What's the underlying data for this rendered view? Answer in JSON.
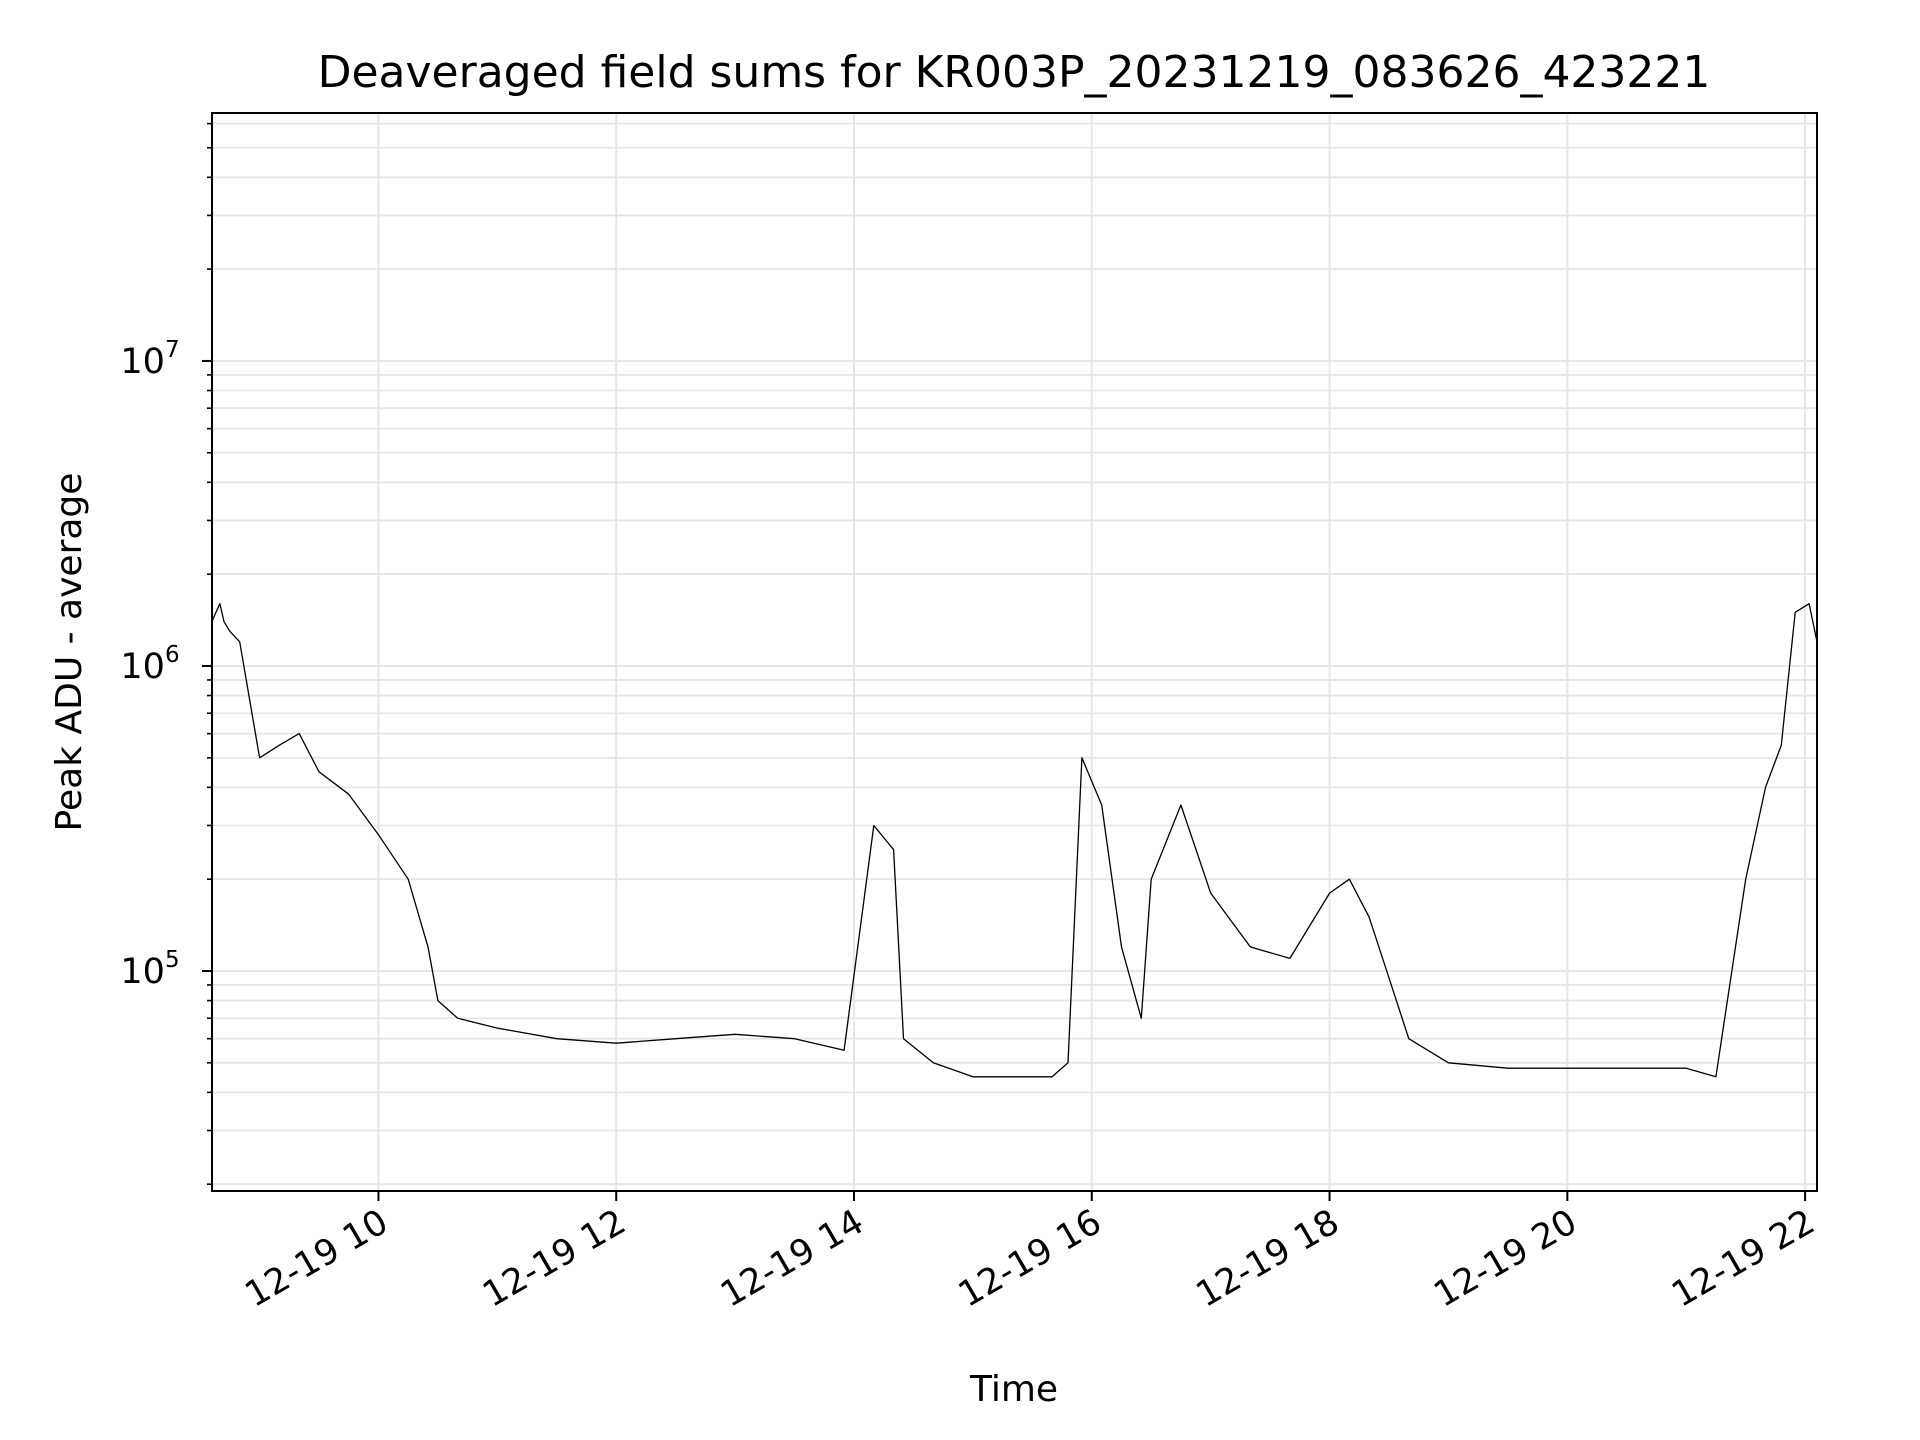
{
  "chart_data": {
    "type": "line",
    "title": "Deaveraged field sums for KR003P_20231219_083626_423221",
    "xlabel": "Time",
    "ylabel": "Peak ADU - average",
    "xlim": [
      "2023-12-19T08:36",
      "2023-12-19T22:06"
    ],
    "ylim": [
      19000,
      65000000
    ],
    "yscale": "log",
    "grid": true,
    "x_ticks": [
      {
        "value": "2023-12-19T10:00",
        "label": "12-19 10"
      },
      {
        "value": "2023-12-19T12:00",
        "label": "12-19 12"
      },
      {
        "value": "2023-12-19T14:00",
        "label": "12-19 14"
      },
      {
        "value": "2023-12-19T16:00",
        "label": "12-19 16"
      },
      {
        "value": "2023-12-19T18:00",
        "label": "12-19 18"
      },
      {
        "value": "2023-12-19T20:00",
        "label": "12-19 20"
      },
      {
        "value": "2023-12-19T22:00",
        "label": "12-19 22"
      }
    ],
    "y_ticks": [
      {
        "value": 100000,
        "base": "10",
        "exp": "5"
      },
      {
        "value": 1000000,
        "base": "10",
        "exp": "6"
      },
      {
        "value": 10000000,
        "base": "10",
        "exp": "7"
      }
    ],
    "series": [
      {
        "color": "#000000",
        "x": [
          "2023-12-19T08:36",
          "2023-12-19T08:38",
          "2023-12-19T08:40",
          "2023-12-19T08:42",
          "2023-12-19T08:45",
          "2023-12-19T08:50",
          "2023-12-19T09:00",
          "2023-12-19T09:10",
          "2023-12-19T09:20",
          "2023-12-19T09:30",
          "2023-12-19T09:45",
          "2023-12-19T10:00",
          "2023-12-19T10:15",
          "2023-12-19T10:25",
          "2023-12-19T10:30",
          "2023-12-19T10:40",
          "2023-12-19T11:00",
          "2023-12-19T11:30",
          "2023-12-19T12:00",
          "2023-12-19T12:30",
          "2023-12-19T13:00",
          "2023-12-19T13:30",
          "2023-12-19T13:55",
          "2023-12-19T14:10",
          "2023-12-19T14:20",
          "2023-12-19T14:25",
          "2023-12-19T14:40",
          "2023-12-19T15:00",
          "2023-12-19T15:20",
          "2023-12-19T15:40",
          "2023-12-19T15:48",
          "2023-12-19T15:55",
          "2023-12-19T16:05",
          "2023-12-19T16:15",
          "2023-12-19T16:25",
          "2023-12-19T16:30",
          "2023-12-19T16:45",
          "2023-12-19T17:00",
          "2023-12-19T17:20",
          "2023-12-19T17:40",
          "2023-12-19T18:00",
          "2023-12-19T18:10",
          "2023-12-19T18:20",
          "2023-12-19T18:40",
          "2023-12-19T19:00",
          "2023-12-19T19:30",
          "2023-12-19T19:55",
          "2023-12-19T20:30",
          "2023-12-19T21:00",
          "2023-12-19T21:15",
          "2023-12-19T21:30",
          "2023-12-19T21:40",
          "2023-12-19T21:48",
          "2023-12-19T21:55",
          "2023-12-19T22:02",
          "2023-12-19T22:06"
        ],
        "y": [
          1400000,
          1500000,
          1600000,
          1400000,
          1300000,
          1200000,
          500000,
          550000,
          600000,
          450000,
          380000,
          280000,
          200000,
          120000,
          80000,
          70000,
          65000,
          60000,
          58000,
          60000,
          62000,
          60000,
          55000,
          300000,
          250000,
          60000,
          50000,
          45000,
          45000,
          45000,
          50000,
          500000,
          350000,
          120000,
          70000,
          200000,
          350000,
          180000,
          120000,
          110000,
          180000,
          200000,
          150000,
          60000,
          50000,
          48000,
          48000,
          48000,
          48000,
          45000,
          200000,
          400000,
          550000,
          1500000,
          1600000,
          1200000
        ]
      }
    ]
  }
}
